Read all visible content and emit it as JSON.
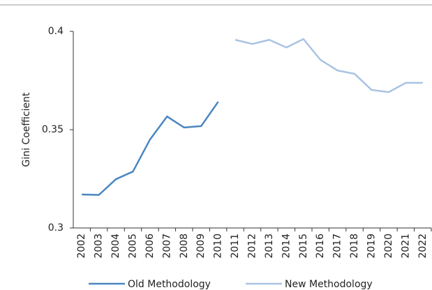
{
  "chart_data": {
    "type": "line",
    "y_label": "Gini Coefficient",
    "categories": [
      "2002",
      "2003",
      "2004",
      "2005",
      "2006",
      "2007",
      "2008",
      "2009",
      "2010",
      "2011",
      "2012",
      "2013",
      "2014",
      "2015",
      "2016",
      "2017",
      "2018",
      "2019",
      "2020",
      "2021",
      "2022"
    ],
    "series": [
      {
        "name": "Old Methodology",
        "color": "#4a86c0",
        "values": [
          0.317,
          0.3168,
          0.3248,
          0.3287,
          0.345,
          0.3567,
          0.3511,
          0.3518,
          0.3642,
          null,
          null,
          null,
          null,
          null,
          null,
          null,
          null,
          null,
          null,
          null,
          null
        ]
      },
      {
        "name": "New Methodology",
        "color": "#a9c3e3",
        "values": [
          null,
          null,
          null,
          null,
          null,
          null,
          null,
          null,
          null,
          0.3957,
          0.3936,
          0.3957,
          0.3918,
          0.3961,
          0.3855,
          0.3801,
          0.3784,
          0.3702,
          0.3691,
          0.3738,
          0.3738
        ]
      }
    ],
    "ylim": [
      0.3,
      0.4
    ],
    "yticks": [
      0.3,
      0.35,
      0.4
    ],
    "grid": false
  }
}
